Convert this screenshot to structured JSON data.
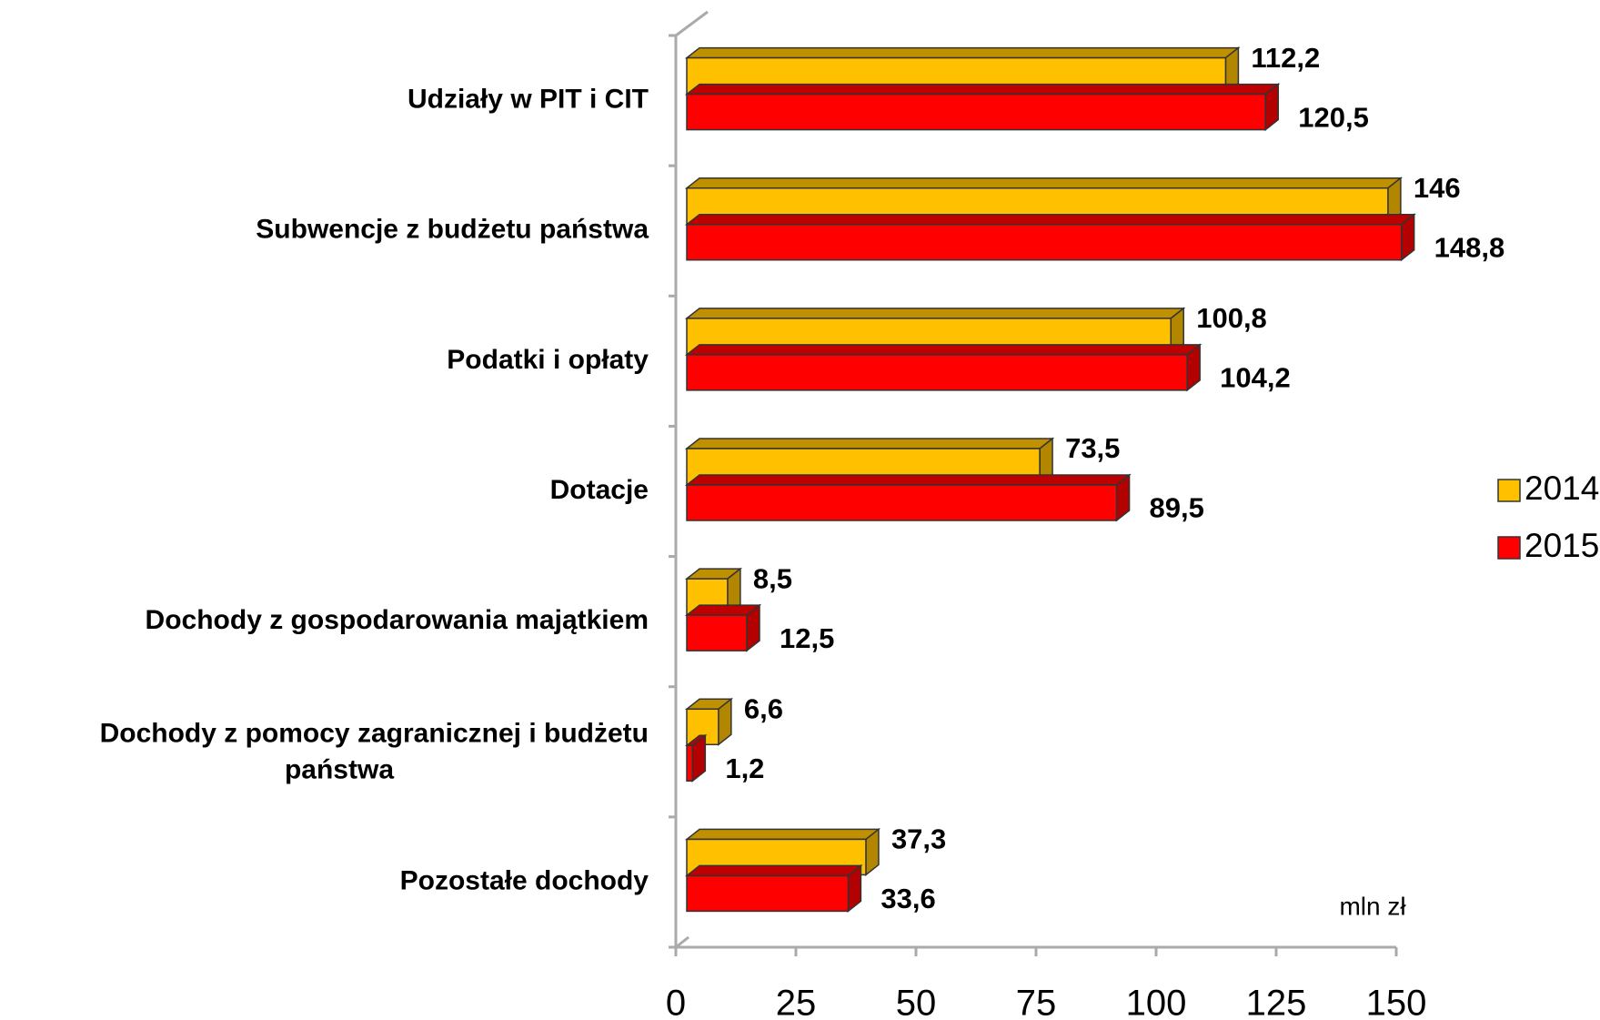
{
  "chart_data": {
    "type": "bar",
    "orientation": "horizontal",
    "x_axis_label": "mln zł",
    "categories": [
      "Udziały w PIT i CIT",
      "Subwencje z budżetu państwa",
      "Podatki i opłaty",
      "Dotacje",
      "Dochody z gospodarowania majątkiem",
      "Dochody z pomocy zagranicznej i budżetu\npaństwa",
      "Pozostałe dochody"
    ],
    "series": [
      {
        "name": "2014",
        "color": "#FFC000",
        "values": [
          112.2,
          146,
          100.8,
          73.5,
          8.5,
          6.6,
          37.3
        ],
        "value_labels": [
          "112,2",
          "146",
          "100,8",
          "73,5",
          "8,5",
          "6,6",
          "37,3"
        ]
      },
      {
        "name": "2015",
        "color": "#FF0000",
        "values": [
          120.5,
          148.8,
          104.2,
          89.5,
          12.5,
          1.2,
          33.6
        ],
        "value_labels": [
          "120,5",
          "148,8",
          "104,2",
          "89,5",
          "12,5",
          "1,2",
          "33,6"
        ]
      }
    ],
    "xlim": [
      0,
      150
    ],
    "xticks": [
      0,
      25,
      50,
      75,
      100,
      125,
      150
    ],
    "legend": "right"
  }
}
